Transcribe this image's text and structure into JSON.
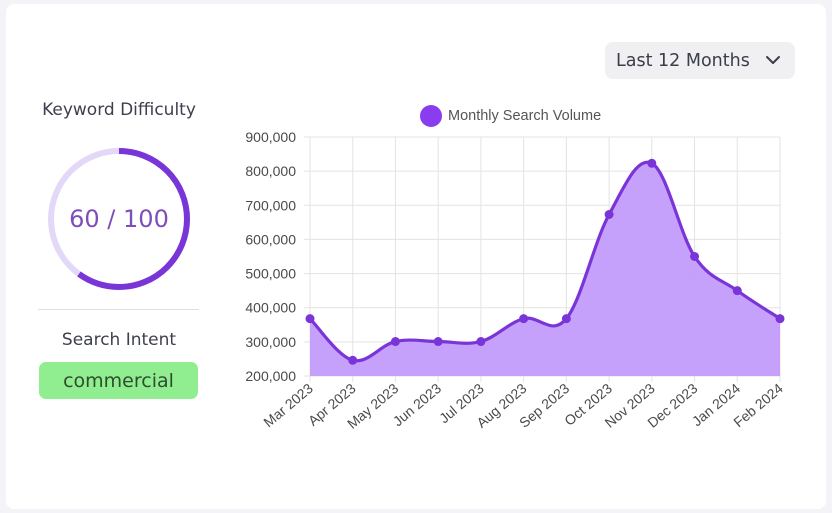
{
  "range_select": {
    "value": "Last 12 Months",
    "icon": "chevron-down-icon"
  },
  "keyword_difficulty": {
    "title": "Keyword Difficulty",
    "label": "60 / 100",
    "score": 60,
    "max": 100
  },
  "search_intent": {
    "title": "Search Intent",
    "value": "commercial"
  },
  "colors": {
    "accent": "#7a35d8",
    "gauge_track": "#e4d8f8",
    "area_fill": "#c39cfb",
    "intent_bg": "#90ee90"
  },
  "chart_data": {
    "type": "area",
    "legend": {
      "label": "Monthly Search Volume",
      "position": "top"
    },
    "categories": [
      "Mar 2023",
      "Apr 2023",
      "May 2023",
      "Jun 2023",
      "Jul 2023",
      "Aug 2023",
      "Sep 2023",
      "Oct 2023",
      "Nov 2023",
      "Dec 2023",
      "Jan 2024",
      "Feb 2024"
    ],
    "series": [
      {
        "name": "Monthly Search Volume",
        "values": [
          368000,
          246000,
          301000,
          301000,
          301000,
          368000,
          368000,
          673000,
          823000,
          550000,
          450000,
          368000
        ]
      }
    ],
    "ylim": [
      200000,
      900000
    ],
    "yticks": [
      "900,000",
      "800,000",
      "700,000",
      "600,000",
      "500,000",
      "400,000",
      "300,000",
      "200,000"
    ],
    "grid": true
  }
}
